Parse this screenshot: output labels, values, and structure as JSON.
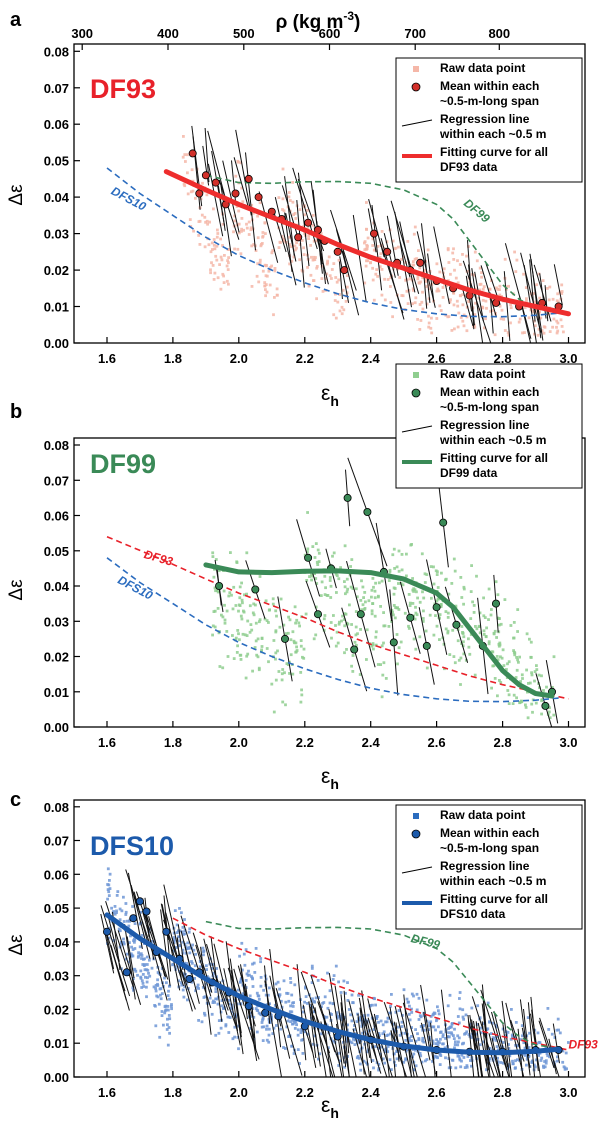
{
  "chart_data": [
    {
      "panel_label": "a",
      "type": "scatter",
      "panel_name": "DF93",
      "panel_name_color": "#e8212a",
      "xlabel": "ε",
      "xlabel_sub": "h",
      "ylabel": "Δε",
      "xlim": [
        1.5,
        3.05
      ],
      "ylim": [
        0,
        0.082
      ],
      "xticks": [
        "1.6",
        "1.8",
        "2.0",
        "2.2",
        "2.4",
        "2.6",
        "2.8",
        "3.0"
      ],
      "yticks": [
        "0.00",
        "0.01",
        "0.02",
        "0.03",
        "0.04",
        "0.05",
        "0.06",
        "0.07",
        "0.08"
      ],
      "top_axis": {
        "label_base": "ρ (kg m",
        "label_sup": "-3",
        "label_close": ")",
        "ticks": [
          {
            "label": "300",
            "x": 1.525
          },
          {
            "label": "400",
            "x": 1.785
          },
          {
            "label": "500",
            "x": 2.015
          },
          {
            "label": "600",
            "x": 2.275
          },
          {
            "label": "700",
            "x": 2.535
          },
          {
            "label": "800",
            "x": 2.79
          }
        ]
      },
      "legend": [
        {
          "marker": "square",
          "color": "#f5b7a8",
          "text": [
            "Raw data point"
          ]
        },
        {
          "marker": "circle",
          "color": "#d2302a",
          "text": [
            "Mean within each",
            "~0.5-m-long span"
          ]
        },
        {
          "marker": "line",
          "color": "#000000",
          "text": [
            "Regression line",
            "within each ~0.5 m"
          ]
        },
        {
          "marker": "thick",
          "color": "#ee2d2d",
          "text": [
            "Fitting curve for all",
            "DF93 data"
          ]
        }
      ],
      "raw_color": "#f5b7a8",
      "raw_marker": "square",
      "raw_segments": [
        [
          1.83,
          1.97,
          0.05,
          0.018
        ],
        [
          1.98,
          2.12,
          0.04,
          0.014
        ],
        [
          2.12,
          2.33,
          0.036,
          0.011
        ],
        [
          2.38,
          2.62,
          0.026,
          0.011
        ],
        [
          2.62,
          2.99,
          0.016,
          0.006
        ]
      ],
      "mean_color": "#d2302a",
      "mean_points": [
        [
          1.86,
          0.052
        ],
        [
          1.88,
          0.041
        ],
        [
          1.9,
          0.046
        ],
        [
          1.93,
          0.044
        ],
        [
          1.96,
          0.038
        ],
        [
          1.99,
          0.041
        ],
        [
          2.03,
          0.045
        ],
        [
          2.06,
          0.04
        ],
        [
          2.1,
          0.036
        ],
        [
          2.13,
          0.034
        ],
        [
          2.18,
          0.029
        ],
        [
          2.21,
          0.033
        ],
        [
          2.24,
          0.031
        ],
        [
          2.26,
          0.028
        ],
        [
          2.3,
          0.025
        ],
        [
          2.32,
          0.02
        ],
        [
          2.41,
          0.03
        ],
        [
          2.45,
          0.025
        ],
        [
          2.48,
          0.022
        ],
        [
          2.52,
          0.02
        ],
        [
          2.55,
          0.022
        ],
        [
          2.6,
          0.017
        ],
        [
          2.65,
          0.015
        ],
        [
          2.7,
          0.013
        ],
        [
          2.78,
          0.011
        ],
        [
          2.85,
          0.01
        ],
        [
          2.92,
          0.011
        ],
        [
          2.97,
          0.01
        ]
      ],
      "fit_curve": {
        "name": "Fitting curve for all DF93 data",
        "color": "#ee2d2d",
        "x": [
          1.78,
          1.9,
          2.0,
          2.1,
          2.2,
          2.3,
          2.4,
          2.5,
          2.6,
          2.7,
          2.8,
          2.9,
          3.0
        ],
        "y": [
          0.047,
          0.042,
          0.038,
          0.0345,
          0.031,
          0.027,
          0.0235,
          0.0205,
          0.0175,
          0.0145,
          0.012,
          0.01,
          0.008
        ]
      },
      "reference_curves": [
        {
          "name": "DFS10",
          "color": "#2b6cbf",
          "x": [
            1.6,
            1.7,
            1.8,
            1.9,
            2.0,
            2.1,
            2.2,
            2.3,
            2.4,
            2.5,
            2.6,
            2.7,
            2.8,
            2.9,
            2.97
          ],
          "y": [
            0.048,
            0.041,
            0.035,
            0.029,
            0.024,
            0.02,
            0.0165,
            0.0135,
            0.011,
            0.0092,
            0.008,
            0.0073,
            0.0072,
            0.0076,
            0.0082
          ],
          "label_pos": [
            1.61,
            0.041
          ],
          "label_rot": 28
        },
        {
          "name": "DF99",
          "color": "#3a8a57",
          "x": [
            1.9,
            2.0,
            2.1,
            2.2,
            2.3,
            2.4,
            2.5,
            2.6,
            2.65,
            2.7,
            2.75,
            2.8,
            2.85,
            2.9,
            2.95
          ],
          "y": [
            0.046,
            0.044,
            0.0438,
            0.0442,
            0.0443,
            0.0438,
            0.042,
            0.038,
            0.034,
            0.028,
            0.022,
            0.016,
            0.012,
            0.0095,
            0.0088
          ],
          "label_pos": [
            2.68,
            0.038
          ],
          "label_rot": 40
        }
      ]
    },
    {
      "panel_label": "b",
      "type": "scatter",
      "panel_name": "DF99",
      "panel_name_color": "#3a8a57",
      "xlabel": "ε",
      "xlabel_sub": "h",
      "ylabel": "Δε",
      "xlim": [
        1.5,
        3.05
      ],
      "ylim": [
        0,
        0.082
      ],
      "xticks": [
        "1.6",
        "1.8",
        "2.0",
        "2.2",
        "2.4",
        "2.6",
        "2.8",
        "3.0"
      ],
      "yticks": [
        "0.00",
        "0.01",
        "0.02",
        "0.03",
        "0.04",
        "0.05",
        "0.06",
        "0.07",
        "0.08"
      ],
      "legend": [
        {
          "marker": "square",
          "color": "#8fce8f",
          "text": [
            "Raw data point"
          ]
        },
        {
          "marker": "circle",
          "color": "#3a8a57",
          "text": [
            "Mean within each",
            "~0.5-m-long span"
          ]
        },
        {
          "marker": "line",
          "color": "#000000",
          "text": [
            "Regression line",
            "within each ~0.5 m"
          ]
        },
        {
          "marker": "thick",
          "color": "#3a8a57",
          "text": [
            "Fitting curve for all",
            "DF99 data"
          ]
        }
      ],
      "raw_color": "#8fce8f",
      "raw_marker": "square",
      "raw_segments": [
        [
          1.92,
          2.2,
          0.035,
          0.02
        ],
        [
          2.2,
          2.45,
          0.045,
          0.028
        ],
        [
          2.45,
          2.7,
          0.04,
          0.028
        ],
        [
          2.7,
          2.85,
          0.03,
          0.018
        ],
        [
          2.85,
          2.96,
          0.012,
          0.004
        ]
      ],
      "mean_color": "#3a8a57",
      "mean_points": [
        [
          1.94,
          0.04
        ],
        [
          2.05,
          0.039
        ],
        [
          2.14,
          0.025
        ],
        [
          2.21,
          0.048
        ],
        [
          2.24,
          0.032
        ],
        [
          2.28,
          0.045
        ],
        [
          2.33,
          0.065
        ],
        [
          2.35,
          0.022
        ],
        [
          2.37,
          0.032
        ],
        [
          2.39,
          0.061
        ],
        [
          2.44,
          0.044
        ],
        [
          2.47,
          0.024
        ],
        [
          2.52,
          0.031
        ],
        [
          2.57,
          0.023
        ],
        [
          2.6,
          0.034
        ],
        [
          2.62,
          0.058
        ],
        [
          2.66,
          0.029
        ],
        [
          2.74,
          0.023
        ],
        [
          2.78,
          0.035
        ],
        [
          2.93,
          0.006
        ],
        [
          2.95,
          0.01
        ]
      ],
      "fit_curve": {
        "name": "Fitting curve for all DF99 data",
        "color": "#3a8a57",
        "x": [
          1.9,
          2.0,
          2.1,
          2.2,
          2.3,
          2.4,
          2.5,
          2.6,
          2.65,
          2.7,
          2.75,
          2.8,
          2.85,
          2.9,
          2.95
        ],
        "y": [
          0.046,
          0.044,
          0.0438,
          0.0442,
          0.0443,
          0.0438,
          0.042,
          0.038,
          0.034,
          0.028,
          0.022,
          0.016,
          0.012,
          0.0095,
          0.0088
        ]
      },
      "reference_curves": [
        {
          "name": "DF93",
          "color": "#e8212a",
          "x": [
            1.6,
            1.78,
            1.9,
            2.0,
            2.1,
            2.2,
            2.3,
            2.4,
            2.5,
            2.6,
            2.7,
            2.8,
            2.9,
            3.0
          ],
          "y": [
            0.054,
            0.047,
            0.042,
            0.038,
            0.0345,
            0.031,
            0.027,
            0.0235,
            0.0205,
            0.0175,
            0.0145,
            0.012,
            0.01,
            0.008
          ],
          "label_pos": [
            1.71,
            0.048
          ],
          "label_rot": 16
        },
        {
          "name": "DFS10",
          "color": "#2b6cbf",
          "x": [
            1.6,
            1.7,
            1.8,
            1.9,
            2.0,
            2.1,
            2.2,
            2.3,
            2.4,
            2.5,
            2.6,
            2.7,
            2.8,
            2.9,
            2.97
          ],
          "y": [
            0.048,
            0.041,
            0.035,
            0.029,
            0.024,
            0.02,
            0.0165,
            0.0135,
            0.011,
            0.0092,
            0.008,
            0.0073,
            0.0072,
            0.0076,
            0.0082
          ],
          "label_pos": [
            1.63,
            0.041
          ],
          "label_rot": 28
        }
      ]
    },
    {
      "panel_label": "c",
      "type": "scatter",
      "panel_name": "DFS10",
      "panel_name_color": "#1c5aab",
      "xlabel": "ε",
      "xlabel_sub": "h",
      "ylabel": "Δε",
      "xlim": [
        1.5,
        3.05
      ],
      "ylim": [
        0,
        0.082
      ],
      "xticks": [
        "1.6",
        "1.8",
        "2.0",
        "2.2",
        "2.4",
        "2.6",
        "2.8",
        "3.0"
      ],
      "yticks": [
        "0.00",
        "0.01",
        "0.02",
        "0.03",
        "0.04",
        "0.05",
        "0.06",
        "0.07",
        "0.08"
      ],
      "legend": [
        {
          "marker": "square",
          "color": "#2b6cbf",
          "text": [
            "Raw data point"
          ]
        },
        {
          "marker": "circle",
          "color": "#1c5aab",
          "text": [
            "Mean within each",
            "~0.5-m-long span"
          ]
        },
        {
          "marker": "line",
          "color": "#000000",
          "text": [
            "Regression line",
            "within each ~0.5 m"
          ]
        },
        {
          "marker": "thick",
          "color": "#1c5aab",
          "text": [
            "Fitting curve for all",
            "DFS10 data"
          ]
        }
      ],
      "raw_color": "#6f97d6",
      "raw_marker": "square",
      "raw_segments": [
        [
          1.6,
          1.8,
          0.052,
          0.02
        ],
        [
          1.8,
          2.0,
          0.04,
          0.016
        ],
        [
          2.0,
          2.2,
          0.028,
          0.012
        ],
        [
          2.2,
          2.5,
          0.02,
          0.009
        ],
        [
          2.5,
          3.0,
          0.012,
          0.004
        ]
      ],
      "mean_color": "#1c5aab",
      "mean_points": [
        [
          1.6,
          0.043
        ],
        [
          1.66,
          0.031
        ],
        [
          1.68,
          0.047
        ],
        [
          1.7,
          0.052
        ],
        [
          1.72,
          0.049
        ],
        [
          1.75,
          0.037
        ],
        [
          1.78,
          0.043
        ],
        [
          1.82,
          0.035
        ],
        [
          1.85,
          0.029
        ],
        [
          1.88,
          0.031
        ],
        [
          1.92,
          0.028
        ],
        [
          1.97,
          0.025
        ],
        [
          2.03,
          0.021
        ],
        [
          2.08,
          0.019
        ],
        [
          2.12,
          0.018
        ],
        [
          2.2,
          0.015
        ],
        [
          2.3,
          0.012
        ],
        [
          2.4,
          0.011
        ],
        [
          2.5,
          0.009
        ],
        [
          2.6,
          0.008
        ],
        [
          2.7,
          0.0075
        ],
        [
          2.8,
          0.0075
        ],
        [
          2.9,
          0.008
        ],
        [
          2.97,
          0.008
        ]
      ],
      "fit_curve": {
        "name": "Fitting curve for all DFS10 data",
        "color": "#1c5aab",
        "x": [
          1.6,
          1.7,
          1.8,
          1.9,
          2.0,
          2.1,
          2.2,
          2.3,
          2.4,
          2.5,
          2.6,
          2.7,
          2.8,
          2.9,
          2.97
        ],
        "y": [
          0.048,
          0.041,
          0.035,
          0.029,
          0.024,
          0.02,
          0.0165,
          0.0135,
          0.011,
          0.0092,
          0.008,
          0.0073,
          0.0072,
          0.0076,
          0.0082
        ]
      },
      "reference_curves": [
        {
          "name": "DF93",
          "color": "#e8212a",
          "x": [
            1.8,
            1.9,
            2.0,
            2.1,
            2.2,
            2.3,
            2.4,
            2.5,
            2.6,
            2.7,
            2.8,
            2.9,
            3.0
          ],
          "y": [
            0.047,
            0.042,
            0.038,
            0.0345,
            0.031,
            0.027,
            0.0235,
            0.0205,
            0.0175,
            0.0145,
            0.012,
            0.01,
            0.008
          ],
          "label_pos": [
            3.0,
            0.0085
          ],
          "label_rot": 0
        },
        {
          "name": "DF99",
          "color": "#3a8a57",
          "x": [
            1.9,
            2.0,
            2.1,
            2.2,
            2.3,
            2.4,
            2.5,
            2.6,
            2.65,
            2.7,
            2.75,
            2.8,
            2.85,
            2.9,
            2.95
          ],
          "y": [
            0.046,
            0.044,
            0.0438,
            0.0442,
            0.0443,
            0.0438,
            0.042,
            0.038,
            0.034,
            0.028,
            0.022,
            0.016,
            0.012,
            0.0095,
            0.0088
          ],
          "label_pos": [
            2.52,
            0.04
          ],
          "label_rot": 14
        }
      ]
    }
  ]
}
